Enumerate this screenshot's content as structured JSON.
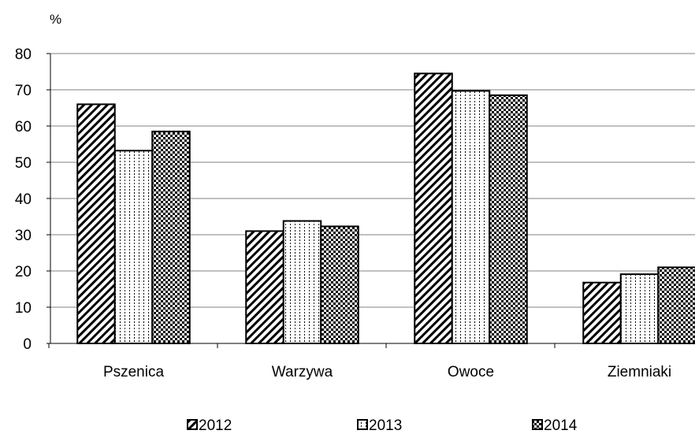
{
  "chart_data": {
    "type": "bar",
    "ylabel": "%",
    "ylim": [
      0,
      80
    ],
    "yticks": [
      0,
      10,
      20,
      30,
      40,
      50,
      60,
      70,
      80
    ],
    "grid": true,
    "legend_position": "bottom",
    "categories": [
      "Pszenica",
      "Warzywa",
      "Owoce",
      "Ziemniaki"
    ],
    "series": [
      {
        "name": "2012",
        "values": [
          66,
          31,
          74.5,
          16.8
        ],
        "pattern": "diagonal-hatch",
        "color": "#000000"
      },
      {
        "name": "2013",
        "values": [
          53.2,
          33.8,
          69.7,
          19.1
        ],
        "pattern": "dotted-vertical",
        "color": "#000000"
      },
      {
        "name": "2014",
        "values": [
          58.5,
          32.3,
          68.5,
          21
        ],
        "pattern": "checkerboard",
        "color": "#000000"
      }
    ]
  }
}
